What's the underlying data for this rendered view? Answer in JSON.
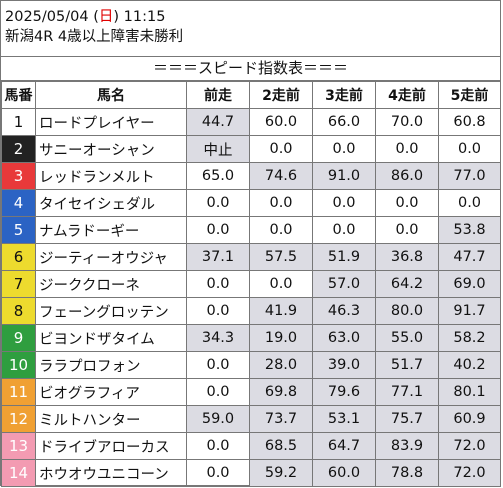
{
  "header": {
    "date": "2025/05/04",
    "weekday_open": "(",
    "weekday": "日",
    "weekday_close": ")",
    "time": "11:15",
    "race": "新潟4R 4歳以上障害未勝利"
  },
  "banner": "＝＝＝スピード指数表＝＝＝",
  "columns": [
    "馬番",
    "馬名",
    "前走",
    "2走前",
    "3走前",
    "4走前",
    "5走前"
  ],
  "colors": {
    "waku": [
      "#ffffff",
      "#222222",
      "#e8393a",
      "#2b63c4",
      "#eddb2e",
      "#2f9e3f",
      "#f0a033",
      "#f39bb2"
    ],
    "highlight": "#dcdce3"
  },
  "rows": [
    {
      "no": "1",
      "name": "ロードプレイヤー",
      "waku": 1,
      "vals": [
        "44.7",
        "60.0",
        "66.0",
        "70.0",
        "60.8"
      ],
      "hl": [
        true,
        false,
        false,
        false,
        false
      ]
    },
    {
      "no": "2",
      "name": "サニーオーシャン",
      "waku": 2,
      "vals": [
        "中止",
        "0.0",
        "0.0",
        "0.0",
        "0.0"
      ],
      "hl": [
        true,
        false,
        false,
        false,
        false
      ]
    },
    {
      "no": "3",
      "name": "レッドランメルト",
      "waku": 3,
      "vals": [
        "65.0",
        "74.6",
        "91.0",
        "86.0",
        "77.0"
      ],
      "hl": [
        false,
        true,
        true,
        true,
        true
      ]
    },
    {
      "no": "4",
      "name": "タイセイシェダル",
      "waku": 4,
      "vals": [
        "0.0",
        "0.0",
        "0.0",
        "0.0",
        "0.0"
      ],
      "hl": [
        false,
        false,
        false,
        false,
        false
      ]
    },
    {
      "no": "5",
      "name": "ナムラドーギー",
      "waku": 4,
      "vals": [
        "0.0",
        "0.0",
        "0.0",
        "0.0",
        "53.8"
      ],
      "hl": [
        false,
        false,
        false,
        false,
        true
      ]
    },
    {
      "no": "6",
      "name": "ジーティーオウジャ",
      "waku": 5,
      "vals": [
        "37.1",
        "57.5",
        "51.9",
        "36.8",
        "47.7"
      ],
      "hl": [
        true,
        true,
        true,
        true,
        true
      ]
    },
    {
      "no": "7",
      "name": "ジーククローネ",
      "waku": 5,
      "vals": [
        "0.0",
        "0.0",
        "57.0",
        "64.2",
        "69.0"
      ],
      "hl": [
        false,
        false,
        true,
        true,
        true
      ]
    },
    {
      "no": "8",
      "name": "フェーングロッテン",
      "waku": 5,
      "vals": [
        "0.0",
        "41.9",
        "46.3",
        "80.0",
        "91.7"
      ],
      "hl": [
        false,
        true,
        true,
        true,
        true
      ]
    },
    {
      "no": "9",
      "name": "ビヨンドザタイム",
      "waku": 6,
      "vals": [
        "34.3",
        "19.0",
        "63.0",
        "55.0",
        "58.2"
      ],
      "hl": [
        true,
        true,
        true,
        true,
        true
      ]
    },
    {
      "no": "10",
      "name": "ララプロフォン",
      "waku": 6,
      "vals": [
        "0.0",
        "28.0",
        "39.0",
        "51.7",
        "40.2"
      ],
      "hl": [
        false,
        true,
        true,
        true,
        true
      ]
    },
    {
      "no": "11",
      "name": "ビオグラフィア",
      "waku": 7,
      "vals": [
        "0.0",
        "69.8",
        "79.6",
        "77.1",
        "80.1"
      ],
      "hl": [
        false,
        true,
        true,
        true,
        true
      ]
    },
    {
      "no": "12",
      "name": "ミルトハンター",
      "waku": 7,
      "vals": [
        "59.0",
        "73.7",
        "53.1",
        "75.7",
        "60.9"
      ],
      "hl": [
        true,
        true,
        true,
        true,
        true
      ]
    },
    {
      "no": "13",
      "name": "ドライブアローカス",
      "waku": 8,
      "vals": [
        "0.0",
        "68.5",
        "64.7",
        "83.9",
        "72.0"
      ],
      "hl": [
        false,
        true,
        true,
        true,
        true
      ]
    },
    {
      "no": "14",
      "name": "ホウオウユニコーン",
      "waku": 8,
      "vals": [
        "0.0",
        "59.2",
        "60.0",
        "78.8",
        "72.0"
      ],
      "hl": [
        false,
        true,
        true,
        true,
        true
      ]
    }
  ]
}
